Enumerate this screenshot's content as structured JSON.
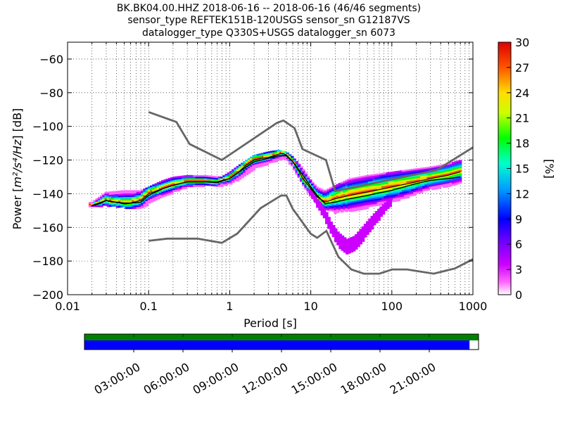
{
  "chart_data": {
    "type": "heatmap",
    "title_lines": [
      "BK.BK04.00.HHZ   2018-06-16 -- 2018-06-16  (46/46 segments)",
      "sensor_type REFTEK151B-120USGS sensor_sn G12187VS",
      "datalogger_type Q330S+USGS datalogger_sn 6073"
    ],
    "xlabel": "Period [s]",
    "ylabel_parts": [
      "Power [",
      "m²/s⁴/Hz",
      "] [dB]"
    ],
    "x_scale": "log",
    "xlim": [
      0.01,
      1000
    ],
    "ylim": [
      -200,
      -50
    ],
    "x_ticks": [
      0.01,
      0.1,
      1,
      10,
      100,
      1000
    ],
    "x_tick_labels": [
      "0.01",
      "0.1",
      "1",
      "10",
      "100",
      "1000"
    ],
    "y_ticks": [
      -200,
      -180,
      -160,
      -140,
      -120,
      -100,
      -80,
      -60
    ],
    "y_tick_labels": [
      "−200",
      "−180",
      "−160",
      "−140",
      "−120",
      "−100",
      "−80",
      "−60"
    ],
    "grid": true,
    "colorbar": {
      "label": "[%]",
      "range": [
        0,
        30
      ],
      "ticks": [
        "0",
        "3",
        "6",
        "9",
        "12",
        "15",
        "18",
        "21",
        "24",
        "27",
        "30"
      ]
    },
    "noise_models": [
      {
        "name": "NHNM",
        "x": [
          0.1,
          0.22,
          0.32,
          0.8,
          3.8,
          4.6,
          6.3,
          7.9,
          15.4,
          20,
          354.8,
          1000
        ],
        "y": [
          -91.5,
          -97.4,
          -110.5,
          -120,
          -98,
          -96.5,
          -101,
          -113.5,
          -120,
          -138.5,
          -126,
          -112.5
        ]
      },
      {
        "name": "NLNM",
        "x": [
          0.1,
          0.17,
          0.4,
          0.8,
          1.24,
          2.4,
          4.3,
          5,
          6,
          10,
          12,
          15.6,
          21.9,
          31.6,
          45,
          70,
          101,
          154,
          328,
          600,
          1000
        ],
        "y": [
          -168,
          -166.7,
          -166.7,
          -169.2,
          -163.7,
          -148.6,
          -141.1,
          -141.1,
          -149,
          -163.8,
          -166.2,
          -162.1,
          -177.5,
          -185,
          -187.5,
          -187.5,
          -185,
          -185,
          -187.5,
          -184.4,
          -178.9
        ]
      }
    ],
    "mode_curve": {
      "x": [
        0.02,
        0.025,
        0.03,
        0.035,
        0.04,
        0.05,
        0.06,
        0.08,
        0.1,
        0.15,
        0.2,
        0.3,
        0.5,
        0.7,
        1,
        1.3,
        1.6,
        2,
        2.5,
        3,
        3.5,
        4,
        4.5,
        5,
        6,
        7,
        8,
        10,
        12,
        15,
        20,
        30,
        50,
        100,
        200,
        300,
        500,
        700
      ],
      "y": [
        -147,
        -146,
        -144,
        -145,
        -145,
        -145.5,
        -145.5,
        -144,
        -140,
        -137,
        -135,
        -133,
        -133,
        -133.5,
        -131,
        -127,
        -123,
        -120,
        -119,
        -118.5,
        -117.5,
        -116.5,
        -116,
        -117,
        -121,
        -126,
        -131,
        -137,
        -142,
        -145,
        -143,
        -141,
        -139,
        -136,
        -133,
        -131,
        -129,
        -127
      ]
    },
    "mean_curve": {
      "x": [
        0.02,
        0.03,
        0.05,
        0.08,
        0.1,
        0.15,
        0.2,
        0.3,
        0.5,
        0.7,
        1,
        1.5,
        2,
        3,
        4,
        5,
        6,
        8,
        10,
        12,
        15,
        20,
        30,
        50,
        100,
        200,
        300,
        500,
        700
      ],
      "y": [
        -147,
        -144,
        -146,
        -145,
        -141,
        -137,
        -135,
        -133,
        -133,
        -133,
        -131,
        -125,
        -121,
        -119,
        -117.5,
        -117.5,
        -121,
        -129,
        -136,
        -141,
        -146,
        -145,
        -143,
        -141,
        -138,
        -134,
        -132,
        -131,
        -130
      ]
    },
    "spread_band": {
      "x": [
        0.02,
        0.03,
        0.05,
        0.08,
        0.1,
        0.15,
        0.2,
        0.3,
        0.5,
        0.8,
        1,
        1.5,
        2,
        3,
        4,
        5,
        6,
        8,
        10,
        12,
        15,
        20,
        30,
        50,
        100,
        200,
        300,
        500,
        700
      ],
      "upper": [
        -146,
        -140,
        -139,
        -139,
        -137,
        -133,
        -131,
        -130,
        -130,
        -131,
        -128,
        -122,
        -118,
        -116,
        -115,
        -116,
        -119,
        -126,
        -133,
        -137,
        -139,
        -136,
        -132,
        -130,
        -128,
        -126,
        -125,
        -123,
        -121
      ],
      "lower": [
        -148,
        -148,
        -149,
        -149,
        -147,
        -142,
        -140,
        -137,
        -136,
        -136,
        -135,
        -131,
        -126,
        -123,
        -121,
        -120,
        -125,
        -135,
        -142,
        -147,
        -150,
        -152,
        -151,
        -149,
        -146,
        -141,
        -138,
        -136,
        -135
      ]
    },
    "low_outlier_band": {
      "x": [
        10,
        12,
        15,
        18,
        22,
        28,
        35,
        45,
        60,
        80,
        100
      ],
      "upper": [
        -138,
        -144,
        -150,
        -158,
        -164,
        -168,
        -166,
        -160,
        -153,
        -147,
        -143
      ],
      "lower": [
        -141,
        -148,
        -156,
        -164,
        -172,
        -176,
        -174,
        -168,
        -160,
        -152,
        -147
      ]
    },
    "time_axis": {
      "labels": [
        "03:00:00",
        "06:00:00",
        "09:00:00",
        "12:00:00",
        "15:00:00",
        "18:00:00",
        "21:00:00"
      ],
      "hours": [
        3,
        6,
        9,
        12,
        15,
        18,
        21
      ],
      "range_hours": [
        0,
        24
      ],
      "data_coverage_hours": [
        0,
        24
      ],
      "gaps_coverage_hours": [
        0,
        23.45
      ],
      "data_color": "#008000",
      "gap_fill_color": "#0000ff"
    }
  }
}
